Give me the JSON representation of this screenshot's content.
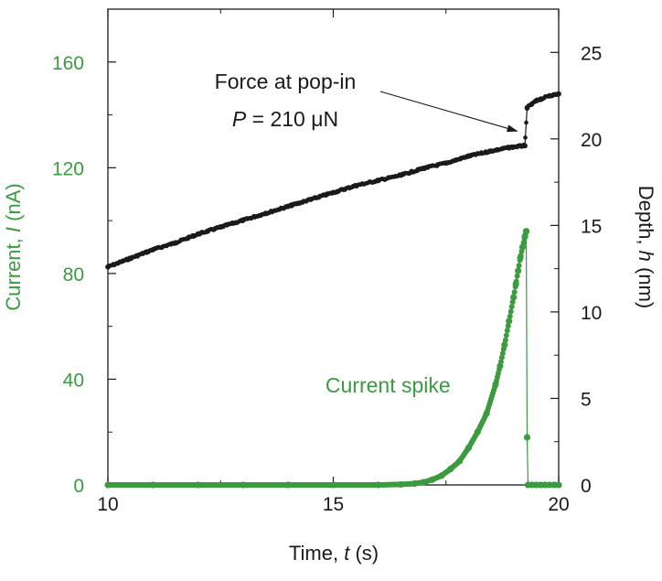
{
  "chart_data": {
    "type": "scatter",
    "x_axis": {
      "label_prefix": "Time, ",
      "label_var": "t",
      "label_suffix": " (s)",
      "range": [
        10,
        20
      ],
      "ticks": [
        10,
        15,
        20
      ],
      "tick_labels": [
        "10",
        "15",
        "20"
      ]
    },
    "y_left": {
      "label_prefix": "Current, ",
      "label_var": "I",
      "label_suffix": " (nA)",
      "range": [
        0,
        180
      ],
      "ticks": [
        0,
        40,
        80,
        120,
        160
      ],
      "tick_labels": [
        "0",
        "40",
        "80",
        "120",
        "160"
      ],
      "color": "#3a9b3f"
    },
    "y_right": {
      "label_prefix": "Depth, ",
      "label_var": "h",
      "label_suffix": " (nm)",
      "range": [
        0,
        27.5
      ],
      "ticks": [
        0,
        5,
        10,
        15,
        20,
        25
      ],
      "tick_labels": [
        "0",
        "5",
        "10",
        "15",
        "20",
        "25"
      ],
      "color": "#1a1a1a"
    },
    "grid": false,
    "series": [
      {
        "axis": "right",
        "color": "#1a1a1a",
        "x": [
          10.0,
          10.5,
          11.0,
          11.5,
          12.0,
          12.5,
          13.0,
          13.5,
          14.0,
          14.5,
          15.0,
          15.5,
          16.0,
          16.5,
          17.0,
          17.5,
          18.0,
          18.5,
          18.9,
          19.2,
          19.25,
          19.3,
          19.4,
          19.5,
          19.6,
          19.8,
          20.0
        ],
        "y": [
          12.6,
          13.1,
          13.6,
          14.0,
          14.5,
          14.9,
          15.3,
          15.7,
          16.1,
          16.5,
          16.9,
          17.3,
          17.6,
          17.9,
          18.3,
          18.6,
          19.0,
          19.3,
          19.5,
          19.6,
          19.6,
          21.8,
          22.0,
          22.2,
          22.3,
          22.5,
          22.6
        ]
      },
      {
        "axis": "left",
        "color": "#3a9b3f",
        "x": [
          10.0,
          11.0,
          12.0,
          13.0,
          14.0,
          15.0,
          16.0,
          16.5,
          16.8,
          17.0,
          17.2,
          17.4,
          17.6,
          17.8,
          18.0,
          18.2,
          18.4,
          18.6,
          18.7,
          18.8,
          18.9,
          19.0,
          19.05,
          19.1,
          19.15,
          19.2,
          19.25,
          19.28,
          19.3,
          19.32,
          19.4,
          19.5,
          19.6,
          19.7,
          19.8,
          19.9,
          20.0
        ],
        "y": [
          0,
          0,
          0,
          0,
          0,
          0,
          0,
          0.2,
          0.5,
          1,
          2,
          3.5,
          6,
          9,
          14,
          20,
          27,
          38,
          45,
          53,
          62,
          71,
          76,
          81,
          86,
          90,
          94,
          96,
          18,
          0,
          0,
          0,
          0,
          0,
          0,
          0,
          0
        ]
      }
    ],
    "annotations": {
      "force_line1": "Force at pop-in",
      "force_var": "P",
      "force_eq": " = 210 μN",
      "force_arrow_target": {
        "x": 19.2,
        "y_right": 19.5
      },
      "spike_label": "Current spike",
      "spike_label_anchor": {
        "x": 17.6,
        "y_left": 35
      }
    }
  }
}
